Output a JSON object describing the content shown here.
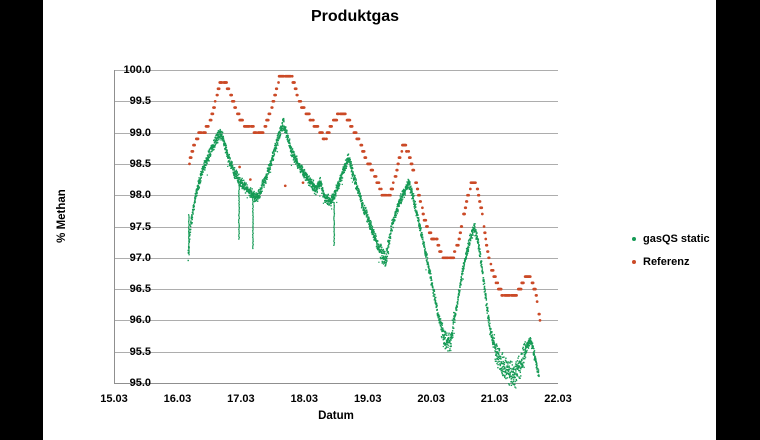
{
  "chart": {
    "title": "Produktgas",
    "xlabel": "Datum",
    "ylabel": "% Methan"
  },
  "legend": {
    "items": [
      {
        "label": "gasQS static",
        "color": "#159A55"
      },
      {
        "label": "Referenz",
        "color": "#CB4A27"
      }
    ]
  },
  "colors": {
    "green_series": "#159A55",
    "red_series": "#CB4A27",
    "gridline": "#ADADAD",
    "axis": "#8F8F8F",
    "background": "#FFFFFF",
    "letterbox": "#000000"
  },
  "chart_data": {
    "type": "scatter",
    "title": "Produktgas",
    "xlabel": "Datum",
    "ylabel": "% Methan",
    "xlim": [
      15,
      22
    ],
    "ylim": [
      95.0,
      100.0
    ],
    "grid": "horizontal",
    "legend_position": "right",
    "xticks": [
      {
        "value": 15,
        "label": "15.03"
      },
      {
        "value": 16,
        "label": "16.03"
      },
      {
        "value": 17,
        "label": "17.03"
      },
      {
        "value": 18,
        "label": "18.03"
      },
      {
        "value": 19,
        "label": "19.03"
      },
      {
        "value": 20,
        "label": "20.03"
      },
      {
        "value": 21,
        "label": "21.03"
      },
      {
        "value": 22,
        "label": "22.03"
      }
    ],
    "yticks": [
      {
        "value": 95.0,
        "label": "95.0"
      },
      {
        "value": 95.5,
        "label": "95.5"
      },
      {
        "value": 96.0,
        "label": "96.0"
      },
      {
        "value": 96.5,
        "label": "96.5"
      },
      {
        "value": 97.0,
        "label": "97.0"
      },
      {
        "value": 97.5,
        "label": "97.5"
      },
      {
        "value": 98.0,
        "label": "98.0"
      },
      {
        "value": 98.5,
        "label": "98.5"
      },
      {
        "value": 99.0,
        "label": "99.0"
      },
      {
        "value": 99.5,
        "label": "99.5"
      },
      {
        "value": 100.0,
        "label": "100.0"
      }
    ],
    "series": [
      {
        "name": "gasQS static",
        "color": "#159A55",
        "style": "dense-noisy-scatter",
        "noise_spread": 0.05,
        "points": [
          [
            16.17,
            97.05
          ],
          [
            16.2,
            97.45
          ],
          [
            16.28,
            97.95
          ],
          [
            16.38,
            98.35
          ],
          [
            16.5,
            98.65
          ],
          [
            16.62,
            98.9
          ],
          [
            16.67,
            99.0
          ],
          [
            16.72,
            98.9
          ],
          [
            16.8,
            98.6
          ],
          [
            16.88,
            98.4
          ],
          [
            16.97,
            98.25
          ],
          [
            17.05,
            98.15
          ],
          [
            17.15,
            98.05
          ],
          [
            17.24,
            97.95
          ],
          [
            17.3,
            98.05
          ],
          [
            17.4,
            98.3
          ],
          [
            17.5,
            98.6
          ],
          [
            17.6,
            98.95
          ],
          [
            17.67,
            99.15
          ],
          [
            17.72,
            99.0
          ],
          [
            17.8,
            98.7
          ],
          [
            17.9,
            98.5
          ],
          [
            18.0,
            98.35
          ],
          [
            18.1,
            98.2
          ],
          [
            18.18,
            98.1
          ],
          [
            18.25,
            98.2
          ],
          [
            18.33,
            97.95
          ],
          [
            18.42,
            97.9
          ],
          [
            18.52,
            98.1
          ],
          [
            18.62,
            98.4
          ],
          [
            18.7,
            98.6
          ],
          [
            18.78,
            98.3
          ],
          [
            18.9,
            97.9
          ],
          [
            19.05,
            97.5
          ],
          [
            19.18,
            97.15
          ],
          [
            19.28,
            96.95
          ],
          [
            19.38,
            97.5
          ],
          [
            19.5,
            97.9
          ],
          [
            19.6,
            98.1
          ],
          [
            19.65,
            98.2
          ],
          [
            19.72,
            97.95
          ],
          [
            19.82,
            97.5
          ],
          [
            19.92,
            97.05
          ],
          [
            20.02,
            96.55
          ],
          [
            20.12,
            96.05
          ],
          [
            20.22,
            95.7
          ],
          [
            20.3,
            95.65
          ],
          [
            20.4,
            96.2
          ],
          [
            20.5,
            96.8
          ],
          [
            20.6,
            97.25
          ],
          [
            20.68,
            97.5
          ],
          [
            20.75,
            97.2
          ],
          [
            20.82,
            96.7
          ],
          [
            20.88,
            96.2
          ],
          [
            20.93,
            95.85
          ],
          [
            20.97,
            95.7
          ],
          [
            21.02,
            95.5
          ],
          [
            21.1,
            95.3
          ],
          [
            21.2,
            95.2
          ],
          [
            21.32,
            95.15
          ],
          [
            21.42,
            95.3
          ],
          [
            21.5,
            95.55
          ],
          [
            21.56,
            95.7
          ],
          [
            21.62,
            95.5
          ],
          [
            21.67,
            95.25
          ],
          [
            21.7,
            95.1
          ]
        ],
        "spikes": [
          [
            16.18,
            97.7,
            97.05
          ],
          [
            16.97,
            98.2,
            97.3
          ],
          [
            17.19,
            98.0,
            97.15
          ],
          [
            18.47,
            97.9,
            97.2
          ]
        ],
        "noise_zones": [
          [
            19.2,
            19.33,
            0.08
          ],
          [
            20.16,
            20.36,
            0.1
          ],
          [
            20.99,
            21.5,
            0.12
          ]
        ]
      },
      {
        "name": "Referenz",
        "color": "#CB4A27",
        "style": "quantized-dash-scatter",
        "quantize_step": 0.1,
        "points": [
          [
            16.19,
            98.55
          ],
          [
            16.26,
            98.8
          ],
          [
            16.35,
            99.0
          ],
          [
            16.45,
            99.05
          ],
          [
            16.52,
            99.2
          ],
          [
            16.6,
            99.5
          ],
          [
            16.66,
            99.75
          ],
          [
            16.76,
            99.8
          ],
          [
            16.83,
            99.65
          ],
          [
            16.9,
            99.45
          ],
          [
            16.98,
            99.25
          ],
          [
            17.08,
            99.1
          ],
          [
            17.2,
            99.05
          ],
          [
            17.3,
            98.95
          ],
          [
            17.38,
            99.1
          ],
          [
            17.46,
            99.3
          ],
          [
            17.54,
            99.6
          ],
          [
            17.6,
            99.85
          ],
          [
            17.8,
            99.9
          ],
          [
            17.88,
            99.65
          ],
          [
            17.95,
            99.45
          ],
          [
            18.05,
            99.3
          ],
          [
            18.15,
            99.15
          ],
          [
            18.25,
            99.0
          ],
          [
            18.33,
            98.9
          ],
          [
            18.42,
            99.1
          ],
          [
            18.52,
            99.25
          ],
          [
            18.62,
            99.3
          ],
          [
            18.72,
            99.15
          ],
          [
            18.85,
            98.9
          ],
          [
            18.97,
            98.6
          ],
          [
            19.1,
            98.35
          ],
          [
            19.22,
            98.05
          ],
          [
            19.33,
            97.95
          ],
          [
            19.42,
            98.2
          ],
          [
            19.5,
            98.6
          ],
          [
            19.57,
            98.85
          ],
          [
            19.65,
            98.65
          ],
          [
            19.73,
            98.35
          ],
          [
            19.82,
            97.95
          ],
          [
            19.9,
            97.6
          ],
          [
            20.0,
            97.35
          ],
          [
            20.1,
            97.25
          ],
          [
            20.18,
            97.0
          ],
          [
            20.33,
            96.95
          ],
          [
            20.42,
            97.2
          ],
          [
            20.5,
            97.6
          ],
          [
            20.58,
            98.0
          ],
          [
            20.64,
            98.2
          ],
          [
            20.72,
            98.15
          ],
          [
            20.8,
            97.75
          ],
          [
            20.87,
            97.25
          ],
          [
            20.93,
            96.9
          ],
          [
            21.0,
            96.7
          ],
          [
            21.07,
            96.5
          ],
          [
            21.15,
            96.4
          ],
          [
            21.3,
            96.4
          ],
          [
            21.4,
            96.5
          ],
          [
            21.48,
            96.65
          ],
          [
            21.55,
            96.7
          ],
          [
            21.6,
            96.6
          ],
          [
            21.65,
            96.45
          ],
          [
            21.69,
            96.2
          ],
          [
            21.72,
            96.0
          ]
        ],
        "outlier_points": [
          [
            16.98,
            98.45
          ],
          [
            17.15,
            98.25
          ],
          [
            17.7,
            98.15
          ],
          [
            17.98,
            98.2
          ]
        ]
      }
    ]
  }
}
